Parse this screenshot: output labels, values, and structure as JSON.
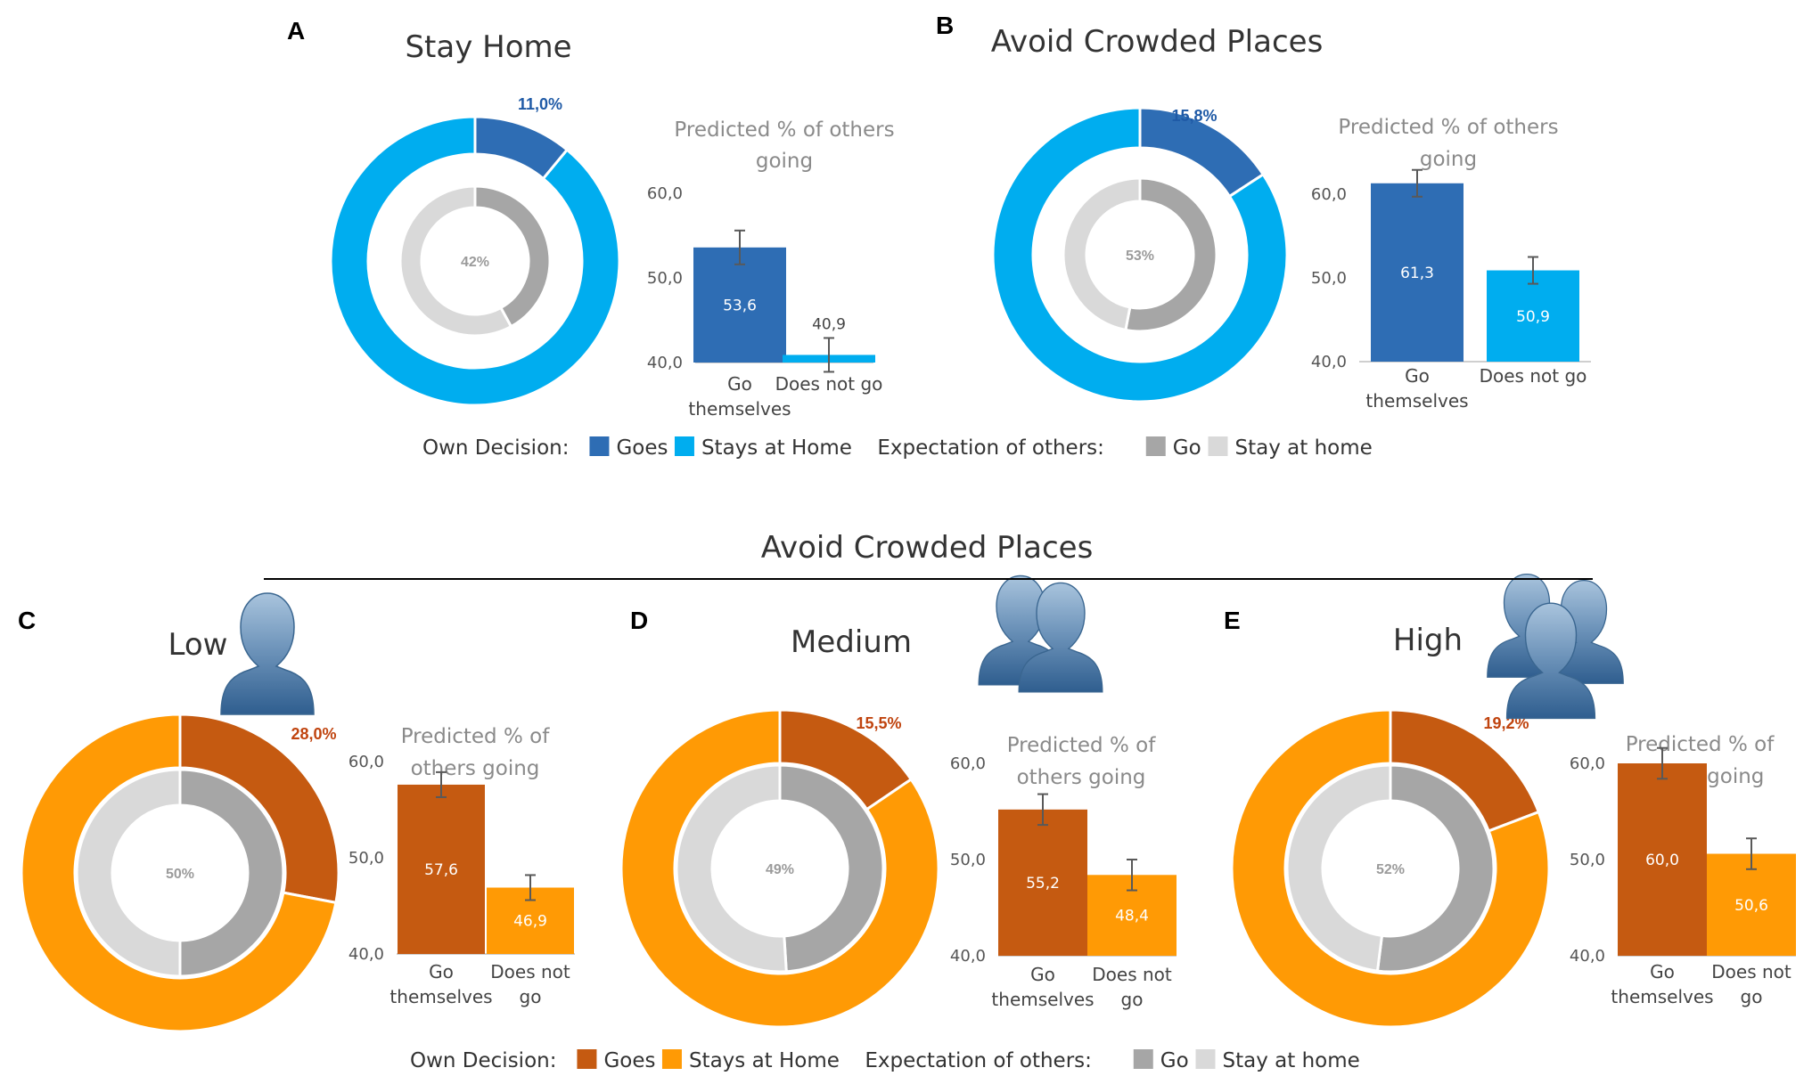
{
  "colors": {
    "blue_dark": "#2e6db4",
    "blue_light": "#00adef",
    "orange_dark": "#c55a11",
    "orange_light": "#ff9a05",
    "gray_dark": "#a6a6a6",
    "gray_light": "#d9d9d9",
    "pct_blue": "#1f5aa6",
    "pct_orange": "#c0440f"
  },
  "section_title": "Avoid Crowded Places",
  "chart_data": [
    {
      "id": "A",
      "panel_label": "A",
      "title": "Stay Home",
      "type": "pie",
      "palette": "blue",
      "outer_ring": {
        "slices": [
          {
            "label": "Goes",
            "value": 11.0
          },
          {
            "label": "Stays at Home",
            "value": 89.0
          }
        ],
        "label_text": "11,0%"
      },
      "inner_ring": {
        "slices": [
          {
            "label": "Go",
            "value": 42
          },
          {
            "label": "Stay at home",
            "value": 58
          }
        ],
        "center_text": "42%"
      },
      "bar_chart": {
        "type": "bar",
        "title_lines": [
          "Predicted % of others",
          "going"
        ],
        "ylim": [
          40,
          60
        ],
        "ticks": [
          "40,0",
          "50,0",
          "60,0"
        ],
        "categories": [
          [
            "Go",
            "themselves"
          ],
          [
            "Does not go"
          ]
        ],
        "values": [
          53.6,
          40.9
        ],
        "value_labels": [
          "53,6",
          "40,9"
        ],
        "errors": [
          2.0,
          2.0
        ]
      }
    },
    {
      "id": "B",
      "panel_label": "B",
      "title": "Avoid Crowded Places",
      "type": "pie",
      "palette": "blue",
      "outer_ring": {
        "slices": [
          {
            "label": "Goes",
            "value": 15.8
          },
          {
            "label": "Stays at Home",
            "value": 84.2
          }
        ],
        "label_text": "15,8%"
      },
      "inner_ring": {
        "slices": [
          {
            "label": "Go",
            "value": 53
          },
          {
            "label": "Stay at home",
            "value": 47
          }
        ],
        "center_text": "53%"
      },
      "bar_chart": {
        "type": "bar",
        "title_lines": [
          "Predicted % of others",
          "going"
        ],
        "ylim": [
          40,
          60
        ],
        "ticks": [
          "40,0",
          "50,0",
          "60,0"
        ],
        "categories": [
          [
            "Go",
            "themselves"
          ],
          [
            "Does not go"
          ]
        ],
        "values": [
          61.3,
          50.9
        ],
        "value_labels": [
          "61,3",
          "50,9"
        ],
        "errors": [
          1.6,
          1.6
        ]
      }
    },
    {
      "id": "C",
      "panel_label": "C",
      "title": "Low",
      "type": "pie",
      "palette": "orange",
      "people_count": 1,
      "outer_ring": {
        "slices": [
          {
            "label": "Goes",
            "value": 28.0
          },
          {
            "label": "Stays at Home",
            "value": 72.0
          }
        ],
        "label_text": "28,0%"
      },
      "inner_ring": {
        "slices": [
          {
            "label": "Go",
            "value": 50
          },
          {
            "label": "Stay at home",
            "value": 50
          }
        ],
        "center_text": "50%"
      },
      "bar_chart": {
        "type": "bar",
        "title_lines": [
          "Predicted % of",
          "others going"
        ],
        "ylim": [
          40,
          60
        ],
        "ticks": [
          "40,0",
          "50,0",
          "60,0"
        ],
        "categories": [
          [
            "Go",
            "themselves"
          ],
          [
            "Does not",
            "go"
          ]
        ],
        "values": [
          57.6,
          46.9
        ],
        "value_labels": [
          "57,6",
          "46,9"
        ],
        "errors": [
          1.3,
          1.3
        ]
      }
    },
    {
      "id": "D",
      "panel_label": "D",
      "title": "Medium",
      "type": "pie",
      "palette": "orange",
      "people_count": 2,
      "outer_ring": {
        "slices": [
          {
            "label": "Goes",
            "value": 15.5
          },
          {
            "label": "Stays at Home",
            "value": 84.5
          }
        ],
        "label_text": "15,5%"
      },
      "inner_ring": {
        "slices": [
          {
            "label": "Go",
            "value": 49
          },
          {
            "label": "Stay at home",
            "value": 51
          }
        ],
        "center_text": "49%"
      },
      "bar_chart": {
        "type": "bar",
        "title_lines": [
          "Predicted % of",
          "others going"
        ],
        "ylim": [
          40,
          60
        ],
        "ticks": [
          "40,0",
          "50,0",
          "60,0"
        ],
        "categories": [
          [
            "Go",
            "themselves"
          ],
          [
            "Does not",
            "go"
          ]
        ],
        "values": [
          55.2,
          48.4
        ],
        "value_labels": [
          "55,2",
          "48,4"
        ],
        "errors": [
          1.6,
          1.6
        ]
      }
    },
    {
      "id": "E",
      "panel_label": "E",
      "title": "High",
      "type": "pie",
      "palette": "orange",
      "people_count": 3,
      "outer_ring": {
        "slices": [
          {
            "label": "Goes",
            "value": 19.2
          },
          {
            "label": "Stays at Home",
            "value": 80.8
          }
        ],
        "label_text": "19,2%"
      },
      "inner_ring": {
        "slices": [
          {
            "label": "Go",
            "value": 52
          },
          {
            "label": "Stay at home",
            "value": 48
          }
        ],
        "center_text": "52%"
      },
      "bar_chart": {
        "type": "bar",
        "title_lines": [
          "Predicted % of",
          "others going"
        ],
        "ylim": [
          40,
          60
        ],
        "ticks": [
          "40,0",
          "50,0",
          "60,0"
        ],
        "categories": [
          [
            "Go",
            "themselves"
          ],
          [
            "Does not",
            "go"
          ]
        ],
        "values": [
          60.0,
          50.6
        ],
        "value_labels": [
          "60,0",
          "50,6"
        ],
        "errors": [
          1.6,
          1.6
        ]
      }
    }
  ],
  "legends": [
    {
      "palette": "blue",
      "own_label": "Own Decision:",
      "own_items": [
        "Goes",
        "Stays at Home"
      ],
      "exp_label": "Expectation of others:",
      "exp_items": [
        "Go",
        "Stay at home"
      ]
    },
    {
      "palette": "orange",
      "own_label": "Own Decision:",
      "own_items": [
        "Goes",
        "Stays at Home"
      ],
      "exp_label": "Expectation of others:",
      "exp_items": [
        "Go",
        "Stay at home"
      ]
    }
  ]
}
